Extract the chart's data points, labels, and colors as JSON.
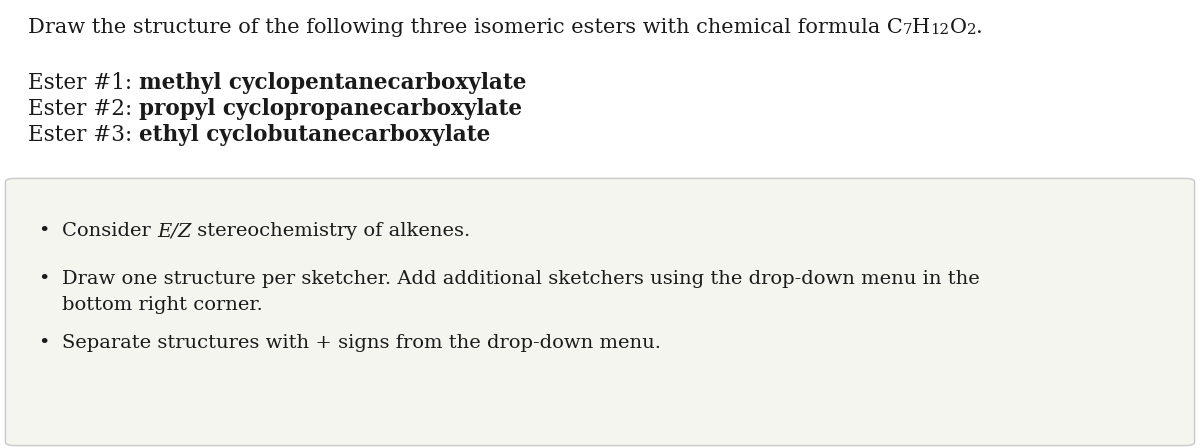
{
  "bg_color": "#ffffff",
  "box_bg_color": "#f5f5f0",
  "box_edge_color": "#c8c8c8",
  "text_color": "#1a1a1a",
  "font_size_title": 15,
  "font_size_ester": 15.5,
  "font_size_bullet": 14,
  "title_main": "Draw the structure of the following three isomeric esters with chemical formula C",
  "formula_parts": [
    "7",
    "H",
    "12",
    "O",
    "2",
    "."
  ],
  "formula_subs": [
    true,
    false,
    true,
    false,
    true,
    false
  ],
  "ester_labels": [
    "Ester #1: ",
    "Ester #2: ",
    "Ester #3: "
  ],
  "ester_bolds": [
    "methyl cyclopentanecarboxylate",
    "propyl cyclopropanecarboxylate",
    "ethyl cyclobutanecarboxylate"
  ],
  "bullet_char": "•",
  "bullet_1_pre": "Consider ",
  "bullet_1_italic": "E/Z",
  "bullet_1_post": " stereochemistry of alkenes.",
  "bullet_2_line1": "Draw one structure per sketcher. Add additional sketchers using the drop-down menu in the",
  "bullet_2_line2": "bottom right corner.",
  "bullet_3": "Separate structures with + signs from the drop-down menu."
}
